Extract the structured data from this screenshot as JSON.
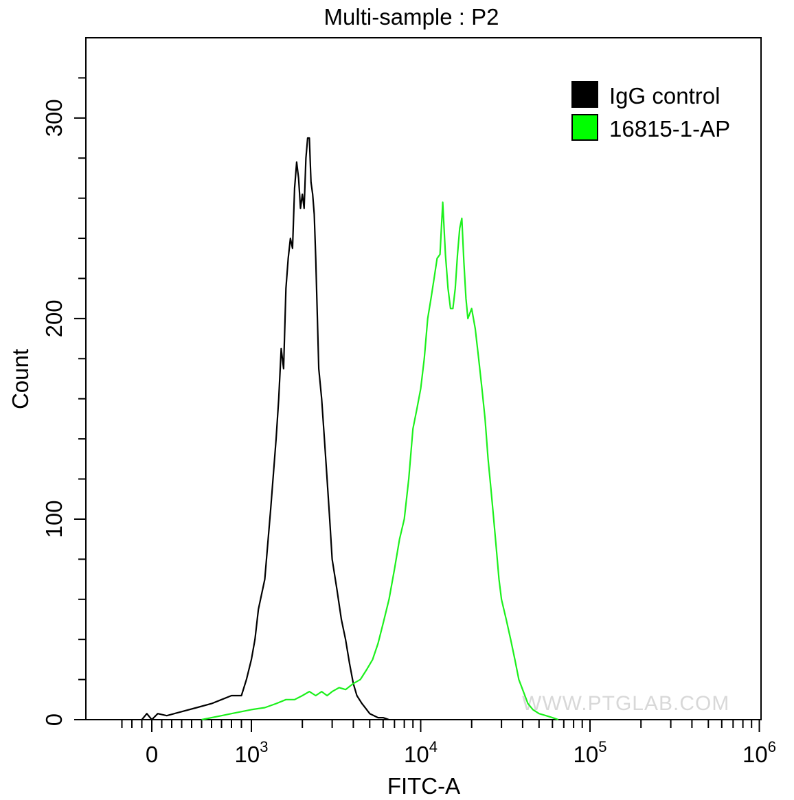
{
  "chart_data": {
    "type": "histogram",
    "title": "Multi-sample : P2",
    "xlabel": "FITC-A",
    "ylabel": "Count",
    "x_scale": "biexponential (log above 10^3)",
    "xlim": [
      -400,
      1000000
    ],
    "ylim": [
      0,
      340
    ],
    "x_tick_labels": [
      {
        "value": 0,
        "base": "0",
        "exp": ""
      },
      {
        "value": 1000,
        "base": "10",
        "exp": "3"
      },
      {
        "value": 10000,
        "base": "10",
        "exp": "4"
      },
      {
        "value": 100000,
        "base": "10",
        "exp": "5"
      },
      {
        "value": 1000000,
        "base": "10",
        "exp": "6"
      }
    ],
    "y_tick_labels": [
      {
        "value": 0,
        "label": "0"
      },
      {
        "value": 100,
        "label": "100"
      },
      {
        "value": 200,
        "label": "200"
      },
      {
        "value": 300,
        "label": "300"
      }
    ],
    "legend_position": "top-right",
    "grid": false,
    "series": [
      {
        "name": "IgG control",
        "color": "#000000",
        "legend_fill": "#000000",
        "x": [
          -100,
          -50,
          0,
          60,
          150,
          300,
          450,
          600,
          700,
          800,
          900,
          950,
          1000,
          1050,
          1100,
          1200,
          1300,
          1400,
          1450,
          1500,
          1550,
          1600,
          1650,
          1700,
          1750,
          1800,
          1850,
          1900,
          1950,
          2000,
          2050,
          2100,
          2150,
          2200,
          2250,
          2300,
          2350,
          2400,
          2500,
          2600,
          2700,
          2800,
          2900,
          3000,
          3200,
          3400,
          3600,
          3800,
          4000,
          4200,
          4500,
          4800,
          5000,
          5300,
          5600,
          6000,
          6500
        ],
        "y": [
          0,
          3,
          0,
          3,
          2,
          4,
          6,
          8,
          10,
          12,
          12,
          20,
          30,
          40,
          55,
          70,
          105,
          140,
          160,
          185,
          175,
          215,
          230,
          240,
          235,
          265,
          278,
          270,
          255,
          262,
          255,
          280,
          290,
          290,
          268,
          262,
          252,
          230,
          175,
          160,
          140,
          120,
          100,
          80,
          65,
          50,
          40,
          28,
          18,
          12,
          8,
          5,
          3,
          2,
          1,
          1,
          0
        ]
      },
      {
        "name": "16815-1-AP",
        "color": "#1cf01c",
        "legend_fill": "#00ff00",
        "x": [
          500,
          600,
          700,
          800,
          900,
          1000,
          1200,
          1400,
          1600,
          1800,
          2000,
          2200,
          2400,
          2600,
          2800,
          3000,
          3300,
          3600,
          4000,
          4400,
          4800,
          5200,
          5600,
          6000,
          6500,
          7000,
          7500,
          8000,
          8500,
          9000,
          9500,
          10000,
          10500,
          11000,
          11500,
          12000,
          12500,
          13000,
          13500,
          14000,
          14500,
          15000,
          15500,
          16000,
          16500,
          17000,
          17500,
          18000,
          18500,
          19000,
          20000,
          21000,
          22000,
          23000,
          24000,
          25000,
          26000,
          27000,
          28000,
          29000,
          30000,
          32000,
          34000,
          36000,
          38000,
          40000,
          43000,
          46000,
          50000,
          55000,
          60000,
          65000
        ],
        "y": [
          0,
          1,
          2,
          3,
          4,
          5,
          6,
          8,
          10,
          10,
          12,
          14,
          12,
          14,
          12,
          14,
          16,
          15,
          18,
          20,
          25,
          30,
          38,
          48,
          60,
          75,
          90,
          100,
          120,
          145,
          155,
          165,
          180,
          200,
          210,
          220,
          230,
          232,
          258,
          232,
          215,
          205,
          205,
          215,
          232,
          245,
          250,
          228,
          210,
          200,
          205,
          195,
          180,
          165,
          150,
          130,
          115,
          100,
          85,
          70,
          60,
          50,
          40,
          30,
          20,
          15,
          8,
          5,
          3,
          2,
          1,
          0
        ]
      }
    ]
  },
  "watermark": "WWW.PTGLAB.COM"
}
